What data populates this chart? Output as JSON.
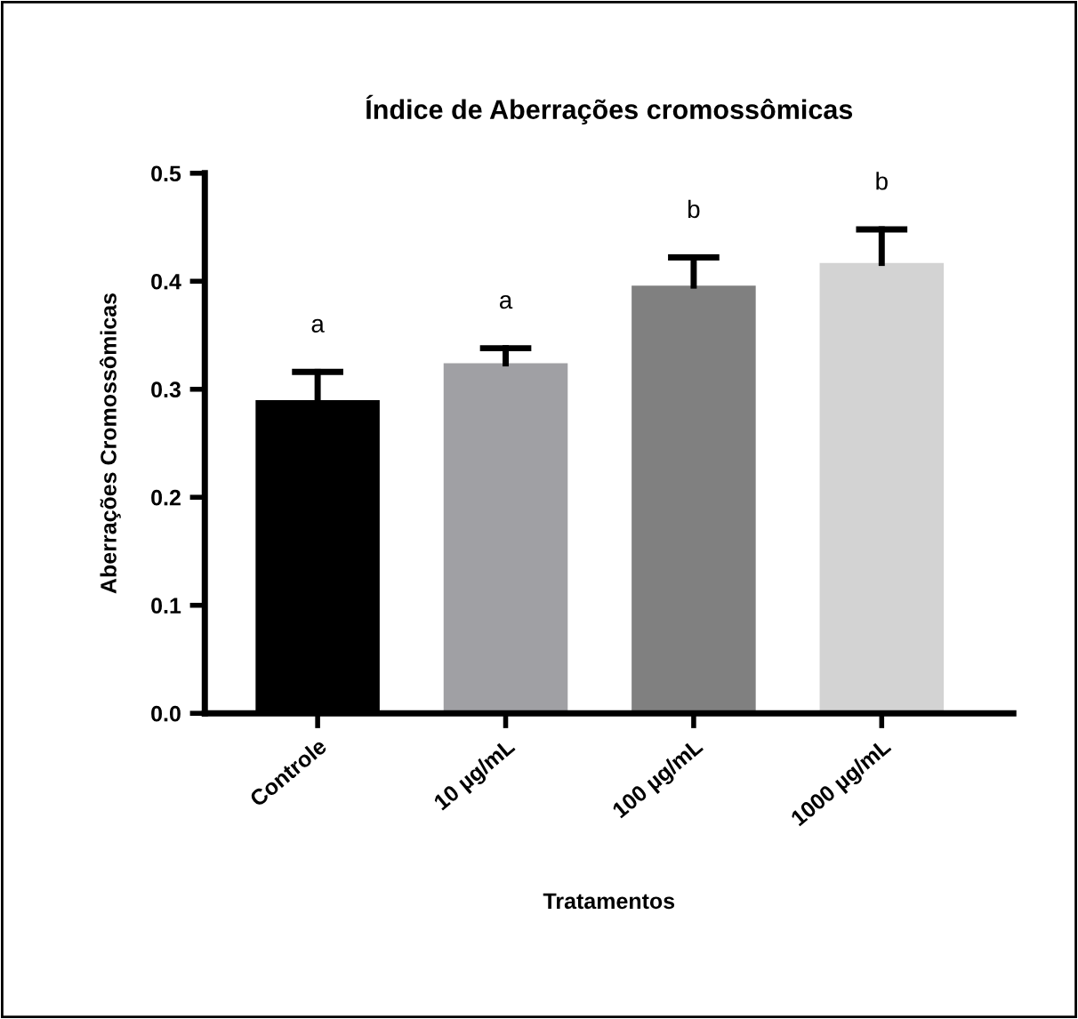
{
  "chart_data": {
    "type": "bar",
    "title": "Índice de Aberrações cromossômicas",
    "xlabel": "Tratamentos",
    "ylabel": "Aberrações Cromossômicas",
    "categories": [
      "Controle",
      "10 µg/mL",
      "100 µg/mL",
      "1000 µg/mL"
    ],
    "values": [
      0.29,
      0.324,
      0.396,
      0.417
    ],
    "colors": [
      "#000000",
      "#a0a0a4",
      "#808080",
      "#d3d3d3"
    ],
    "errors": [
      [
        0.29,
        0.316
      ],
      [
        0.324,
        0.338
      ],
      [
        0.396,
        0.422
      ],
      [
        0.417,
        0.448
      ]
    ],
    "ylim": [
      0,
      0.5
    ],
    "yticks": [
      {
        "value": 0,
        "label": "0.0"
      },
      0.1,
      0.2,
      0.3,
      0.4,
      0.5
    ],
    "value_labels": [
      "a",
      "a",
      "b",
      "b"
    ],
    "grid": false,
    "legend": false
  }
}
